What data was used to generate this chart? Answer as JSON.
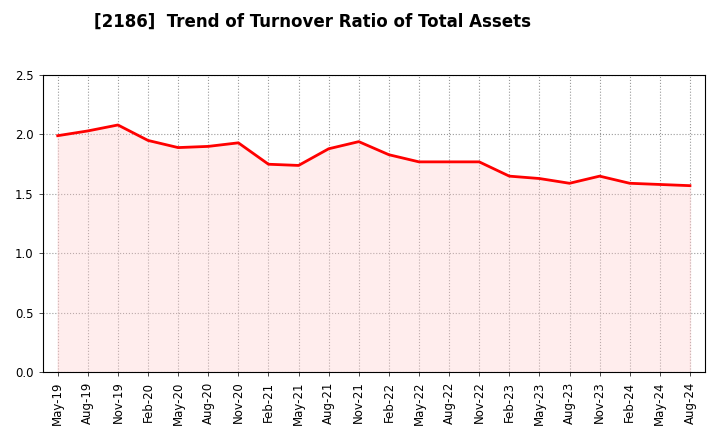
{
  "title": "[2186]  Trend of Turnover Ratio of Total Assets",
  "x_labels": [
    "May-19",
    "Aug-19",
    "Nov-19",
    "Feb-20",
    "May-20",
    "Aug-20",
    "Nov-20",
    "Feb-21",
    "May-21",
    "Aug-21",
    "Nov-21",
    "Feb-22",
    "May-22",
    "Aug-22",
    "Nov-22",
    "Feb-23",
    "May-23",
    "Aug-23",
    "Nov-23",
    "Feb-24",
    "May-24",
    "Aug-24"
  ],
  "values": [
    1.99,
    2.03,
    2.08,
    1.95,
    1.89,
    1.9,
    1.93,
    1.75,
    1.74,
    1.88,
    1.94,
    1.83,
    1.77,
    1.77,
    1.77,
    1.65,
    1.63,
    1.59,
    1.65,
    1.59,
    1.58,
    1.57
  ],
  "line_color": "#ff0000",
  "line_width": 2.0,
  "ylim": [
    0.0,
    2.5
  ],
  "yticks": [
    0.0,
    0.5,
    1.0,
    1.5,
    2.0,
    2.5
  ],
  "background_color": "#ffffff",
  "grid_color": "#999999",
  "title_fontsize": 12,
  "tick_fontsize": 8.5,
  "fill": false,
  "fill_color": "#ffcccc",
  "fill_alpha": 0.35
}
